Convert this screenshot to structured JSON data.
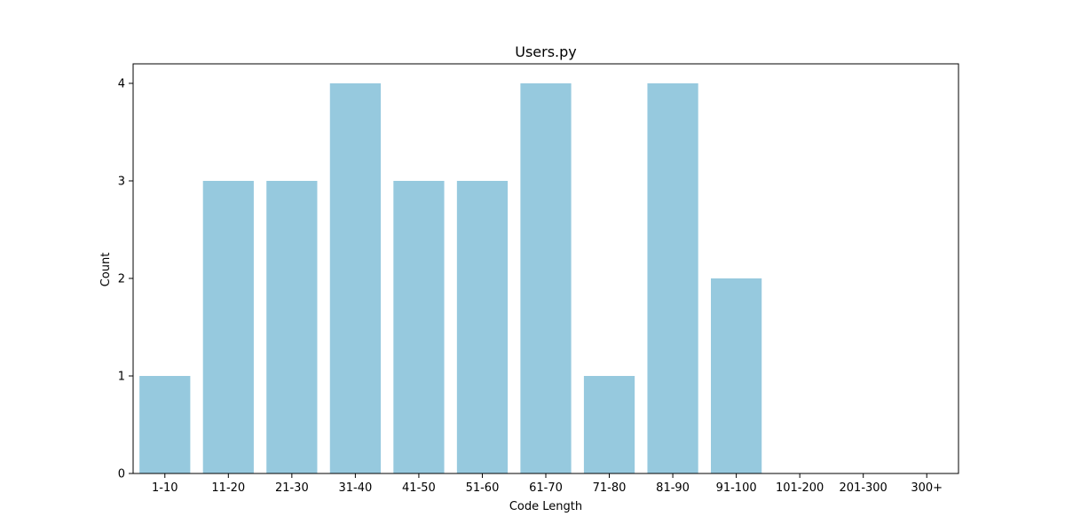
{
  "chart_data": {
    "type": "bar",
    "title": "Users.py",
    "xlabel": "Code Length",
    "ylabel": "Count",
    "categories": [
      "1-10",
      "11-20",
      "21-30",
      "31-40",
      "41-50",
      "51-60",
      "61-70",
      "71-80",
      "81-90",
      "91-100",
      "101-200",
      "201-300",
      "300+"
    ],
    "values": [
      1,
      3,
      3,
      4,
      3,
      3,
      4,
      1,
      4,
      2,
      0,
      0,
      0
    ],
    "ylim": [
      0,
      4.2
    ],
    "yticks": [
      0,
      1,
      2,
      3,
      4
    ],
    "grid": false,
    "bar_color": "#96c9de"
  }
}
